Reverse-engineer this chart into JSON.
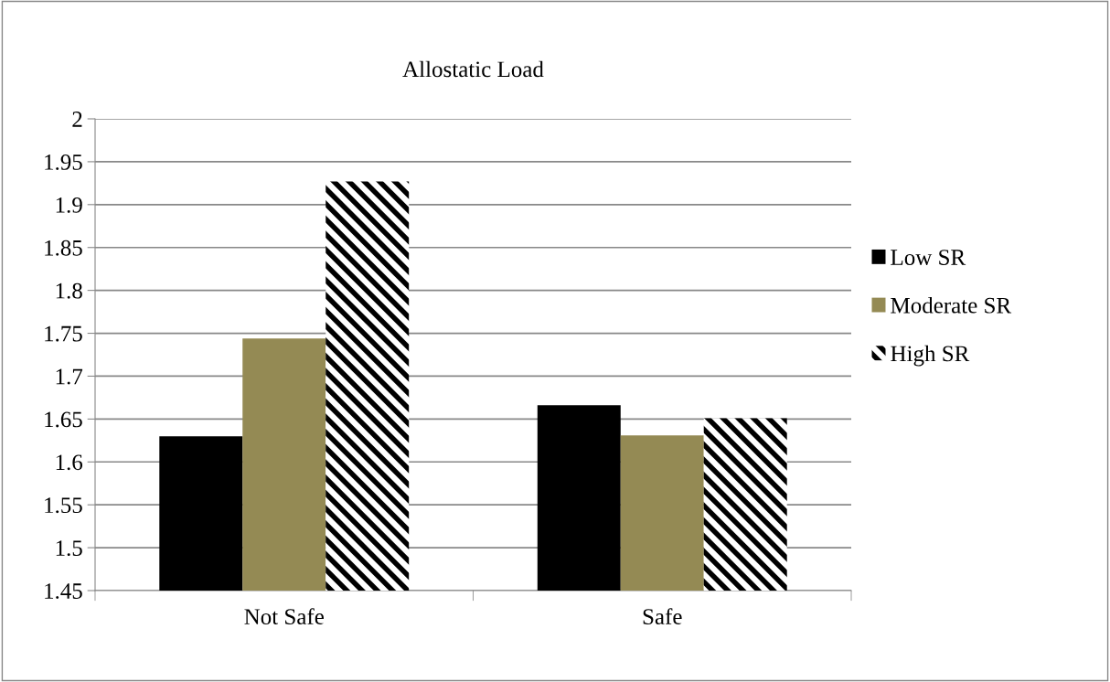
{
  "chart_data": {
    "type": "bar",
    "title": "Allostatic Load",
    "categories": [
      "Not Safe",
      "Safe"
    ],
    "series": [
      {
        "name": "Low SR",
        "color": "#000000",
        "values": [
          1.63,
          1.666
        ]
      },
      {
        "name": "Moderate SR",
        "color": "#948a54",
        "values": [
          1.744,
          1.631
        ]
      },
      {
        "name": "High SR",
        "color": "#000000",
        "values": [
          1.927,
          1.651
        ]
      }
    ],
    "ylim": [
      1.45,
      2
    ],
    "yticks": [
      1.45,
      1.5,
      1.55,
      1.6,
      1.65,
      1.7,
      1.75,
      1.8,
      1.85,
      1.9,
      1.95,
      2
    ],
    "grid": "y",
    "legend": "right"
  }
}
